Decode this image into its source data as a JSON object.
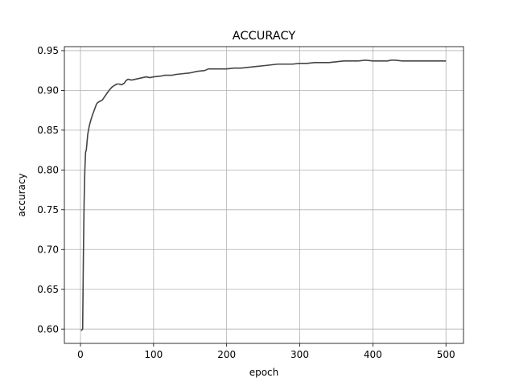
{
  "chart_data": {
    "type": "line",
    "title": "ACCURACY",
    "xlabel": "epoch",
    "ylabel": "accuracy",
    "xlim": [
      -22,
      524
    ],
    "ylim": [
      0.582,
      0.955
    ],
    "x_ticks": [
      0,
      100,
      200,
      300,
      400,
      500
    ],
    "x_tick_labels": [
      "0",
      "100",
      "200",
      "300",
      "400",
      "500"
    ],
    "y_ticks": [
      0.6,
      0.65,
      0.7,
      0.75,
      0.8,
      0.85,
      0.9,
      0.95
    ],
    "y_tick_labels": [
      "0.60",
      "0.65",
      "0.70",
      "0.75",
      "0.80",
      "0.85",
      "0.90",
      "0.95"
    ],
    "grid": true,
    "series": [
      {
        "color": "#444444",
        "x": [
          1,
          3,
          4,
          5,
          6,
          7,
          8,
          10,
          12,
          14,
          16,
          18,
          20,
          22,
          24,
          26,
          28,
          30,
          33,
          36,
          40,
          43,
          46,
          50,
          53,
          56,
          60,
          62,
          65,
          70,
          75,
          80,
          85,
          90,
          95,
          100,
          110,
          115,
          120,
          125,
          130,
          140,
          150,
          160,
          170,
          175,
          180,
          190,
          200,
          210,
          220,
          230,
          240,
          250,
          260,
          270,
          280,
          290,
          300,
          310,
          320,
          330,
          340,
          350,
          360,
          370,
          380,
          390,
          400,
          410,
          420,
          425,
          430,
          440,
          450,
          460,
          470,
          480,
          490,
          495,
          500
        ],
        "y": [
          0.598,
          0.6,
          0.69,
          0.76,
          0.8,
          0.822,
          0.825,
          0.845,
          0.855,
          0.862,
          0.868,
          0.873,
          0.878,
          0.883,
          0.885,
          0.886,
          0.887,
          0.888,
          0.892,
          0.896,
          0.901,
          0.904,
          0.906,
          0.908,
          0.908,
          0.907,
          0.909,
          0.912,
          0.914,
          0.913,
          0.914,
          0.915,
          0.916,
          0.917,
          0.916,
          0.917,
          0.918,
          0.919,
          0.919,
          0.919,
          0.92,
          0.921,
          0.922,
          0.924,
          0.925,
          0.927,
          0.927,
          0.927,
          0.927,
          0.928,
          0.928,
          0.929,
          0.93,
          0.931,
          0.932,
          0.933,
          0.933,
          0.933,
          0.934,
          0.934,
          0.935,
          0.935,
          0.935,
          0.936,
          0.937,
          0.937,
          0.937,
          0.938,
          0.937,
          0.937,
          0.937,
          0.938,
          0.938,
          0.937,
          0.937,
          0.937,
          0.937,
          0.937,
          0.937,
          0.937,
          0.937
        ]
      }
    ]
  }
}
